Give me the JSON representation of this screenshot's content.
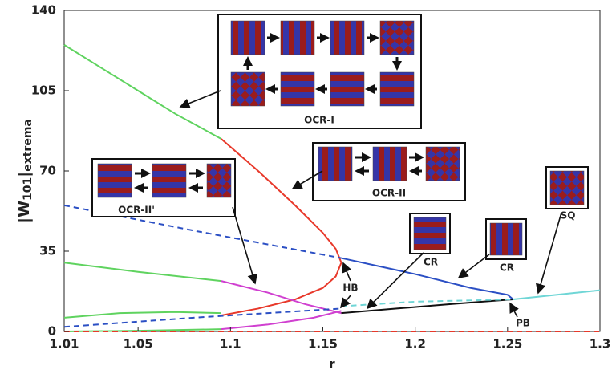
{
  "chart_data": {
    "type": "line",
    "xlabel": "r",
    "ylabel": [
      "|W",
      "101",
      "|",
      "extrema"
    ],
    "xlim": [
      1.01,
      1.3
    ],
    "xticks": [
      1.01,
      1.05,
      1.1,
      1.15,
      1.2,
      1.25,
      1.3
    ],
    "ylim": [
      0,
      140
    ],
    "yticks": [
      0,
      35,
      70,
      105,
      140
    ],
    "annotations": [
      "OCR-I",
      "OCR-II",
      "OCR-II'",
      "CR",
      "CR",
      "SQ",
      "HB",
      "PB"
    ],
    "series": [
      {
        "color": "#5fd35f",
        "x": [
          1.01,
          1.03,
          1.05,
          1.07,
          1.095
        ],
        "values": [
          125,
          115,
          105,
          95,
          84
        ]
      },
      {
        "color": "#e8392b",
        "x": [
          1.095,
          1.115,
          1.135,
          1.15,
          1.157,
          1.16,
          1.157,
          1.15,
          1.135,
          1.115,
          1.095
        ],
        "values": [
          84,
          70,
          55,
          43,
          36,
          30,
          24,
          19,
          14,
          10,
          7
        ]
      },
      {
        "color": "#5fd35f",
        "x": [
          1.01,
          1.05,
          1.095
        ],
        "values": [
          30,
          26,
          22
        ]
      },
      {
        "color": "#d040d0",
        "x": [
          1.095,
          1.12,
          1.14,
          1.16
        ],
        "values": [
          22,
          17,
          12,
          8
        ]
      },
      {
        "color": "#5fd35f",
        "x": [
          1.01,
          1.04,
          1.07,
          1.095
        ],
        "values": [
          6,
          8,
          8.5,
          8
        ]
      },
      {
        "color": "#5fd35f",
        "x": [
          1.01,
          1.05,
          1.095
        ],
        "values": [
          0,
          0.3,
          1
        ]
      },
      {
        "color": "#d040d0",
        "x": [
          1.095,
          1.12,
          1.145,
          1.16
        ],
        "values": [
          1,
          3,
          6,
          9
        ]
      },
      {
        "color": "#2b4fc4",
        "dashed": true,
        "x": [
          1.01,
          1.08,
          1.16
        ],
        "values": [
          55,
          44,
          32
        ]
      },
      {
        "color": "#2b4fc4",
        "x": [
          1.16,
          1.2,
          1.23,
          1.25,
          1.253
        ],
        "values": [
          32,
          25,
          19,
          16,
          14
        ]
      },
      {
        "color": "#111111",
        "x": [
          1.253,
          1.22,
          1.19,
          1.16
        ],
        "values": [
          14,
          12,
          10,
          8
        ]
      },
      {
        "color": "#2b4fc4",
        "dashed": true,
        "x": [
          1.01,
          1.08,
          1.16
        ],
        "values": [
          2,
          6,
          10
        ]
      },
      {
        "color": "#6fd6d6",
        "dashed": true,
        "x": [
          1.16,
          1.2,
          1.253
        ],
        "values": [
          11,
          13,
          14
        ]
      },
      {
        "color": "#6fd6d6",
        "x": [
          1.253,
          1.3
        ],
        "values": [
          14,
          18
        ]
      },
      {
        "color": "#e8392b",
        "dashed": true,
        "x": [
          1.01,
          1.3
        ],
        "values": [
          0,
          0
        ]
      }
    ]
  }
}
